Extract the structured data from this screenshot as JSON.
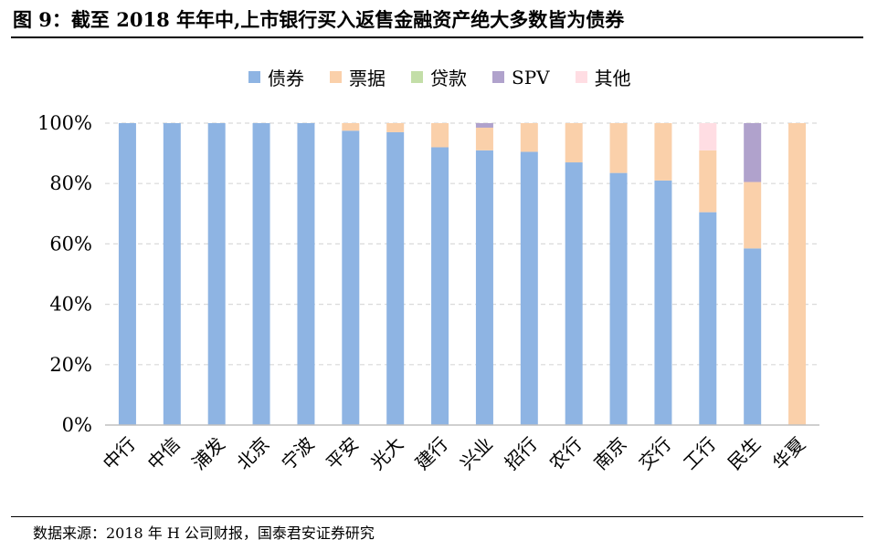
{
  "figure": {
    "title": "图 9：截至 2018 年年中,上市银行买入返售金融资产绝大多数皆为债券",
    "source": "数据来源：2018 年 H 公司财报，国泰君安证券研究"
  },
  "colors": {
    "债券": "#8EB4E3",
    "票据": "#FAD0AA",
    "贷款": "#C3DEA8",
    "SPV": "#B0A2CC",
    "其他": "#FFDDE3"
  },
  "chart_data": {
    "type": "bar",
    "stacked": true,
    "title": "",
    "xlabel": "",
    "ylabel": "",
    "ylim": [
      0,
      100
    ],
    "y_ticks": [
      "0%",
      "20%",
      "40%",
      "60%",
      "80%",
      "100%"
    ],
    "grid": true,
    "legend_position": "top",
    "categories": [
      "中行",
      "中信",
      "浦发",
      "北京",
      "宁波",
      "平安",
      "光大",
      "建行",
      "兴业",
      "招行",
      "农行",
      "南京",
      "交行",
      "工行",
      "民生",
      "华夏"
    ],
    "series": [
      {
        "name": "债券",
        "values": [
          100,
          100,
          100,
          100,
          100,
          97.5,
          97,
          92,
          91,
          90.5,
          87,
          83.5,
          81,
          70.5,
          58.5,
          0
        ]
      },
      {
        "name": "票据",
        "values": [
          0,
          0,
          0,
          0,
          0,
          2.5,
          3,
          8,
          7.5,
          9.5,
          13,
          16.5,
          19,
          20.5,
          22,
          100
        ]
      },
      {
        "name": "贷款",
        "values": [
          0,
          0,
          0,
          0,
          0,
          0,
          0,
          0,
          0,
          0,
          0,
          0,
          0,
          0,
          0,
          0
        ]
      },
      {
        "name": "SPV",
        "values": [
          0,
          0,
          0,
          0,
          0,
          0,
          0,
          0,
          1.5,
          0,
          0,
          0,
          0,
          0,
          19.5,
          0
        ]
      },
      {
        "name": "其他",
        "values": [
          0,
          0,
          0,
          0,
          0,
          0,
          0,
          0,
          0,
          0,
          0,
          0,
          0,
          9,
          0,
          0
        ]
      }
    ]
  }
}
